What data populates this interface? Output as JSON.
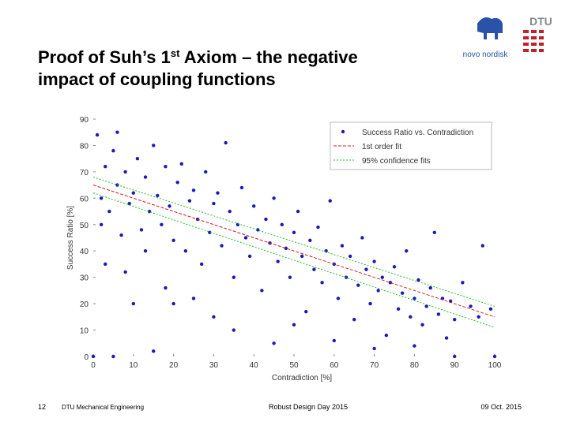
{
  "slide": {
    "title_parts": [
      "Proof of Suh’s 1",
      "st",
      " Axiom – the negative impact of coupling functions"
    ],
    "logos": {
      "novo": "novo nordisk",
      "dtu": "DTU"
    },
    "footer": {
      "page": "12",
      "department": "DTU Mechanical Engineering",
      "event": "Robust Design Day 2015",
      "date": "09 Oct. 2015"
    }
  },
  "chart_data": {
    "type": "scatter",
    "x_label": "Contradiction [%]",
    "y_label": "Success Ratio [%]",
    "xlim": [
      0,
      100
    ],
    "ylim": [
      0,
      90
    ],
    "xticks": [
      0,
      10,
      20,
      30,
      40,
      50,
      60,
      70,
      80,
      90,
      100
    ],
    "yticks": [
      0,
      10,
      20,
      30,
      40,
      50,
      60,
      70,
      80,
      90
    ],
    "grid": false,
    "legend": "upper right",
    "series": [
      {
        "name": "Success Ratio vs. Contradiction",
        "color": "#1a1ab8",
        "mode": "markers",
        "x": [
          1,
          2,
          3,
          4,
          5,
          6,
          7,
          8,
          9,
          10,
          11,
          12,
          13,
          14,
          15,
          16,
          17,
          18,
          19,
          20,
          21,
          22,
          23,
          24,
          25,
          26,
          27,
          28,
          29,
          30,
          31,
          32,
          33,
          34,
          35,
          36,
          37,
          38,
          39,
          40,
          41,
          42,
          43,
          44,
          45,
          46,
          47,
          48,
          49,
          50,
          51,
          52,
          53,
          54,
          55,
          56,
          57,
          58,
          59,
          60,
          61,
          62,
          63,
          64,
          65,
          66,
          67,
          68,
          69,
          70,
          71,
          72,
          73,
          74,
          75,
          76,
          77,
          78,
          79,
          80,
          81,
          82,
          83,
          84,
          85,
          86,
          87,
          88,
          89,
          90,
          92,
          94,
          96,
          97,
          99,
          100,
          0,
          5,
          15,
          20,
          25,
          30,
          35,
          10,
          45,
          50,
          60,
          70,
          80,
          90,
          3,
          8,
          13,
          18,
          2,
          6
        ],
        "values": [
          84,
          60,
          72,
          55,
          78,
          65,
          46,
          70,
          58,
          62,
          75,
          48,
          68,
          55,
          80,
          61,
          50,
          72,
          57,
          44,
          66,
          73,
          40,
          59,
          63,
          52,
          35,
          70,
          47,
          58,
          62,
          42,
          81,
          55,
          30,
          50,
          64,
          45,
          38,
          57,
          48,
          25,
          52,
          43,
          60,
          36,
          50,
          41,
          30,
          47,
          55,
          38,
          17,
          44,
          33,
          49,
          28,
          40,
          59,
          35,
          22,
          42,
          30,
          38,
          14,
          27,
          45,
          33,
          20,
          36,
          25,
          30,
          8,
          28,
          34,
          18,
          24,
          40,
          15,
          22,
          29,
          12,
          19,
          26,
          47,
          16,
          22,
          7,
          21,
          14,
          28,
          19,
          15,
          42,
          18,
          0,
          0,
          0,
          2,
          20,
          22,
          15,
          10,
          20,
          5,
          12,
          6,
          3,
          4,
          0,
          35,
          32,
          40,
          26,
          50,
          85
        ]
      },
      {
        "name": "1st order fit",
        "color": "#d02020",
        "mode": "line",
        "x": [
          0,
          100
        ],
        "values": [
          65,
          15
        ]
      },
      {
        "name": "95% confidence fits",
        "color": "#20c020",
        "mode": "dotted",
        "x": [
          0,
          100
        ],
        "values": [
          68,
          19
        ]
      },
      {
        "name": null,
        "color": "#20c020",
        "mode": "dotted",
        "x": [
          0,
          100
        ],
        "values": [
          62,
          11
        ]
      }
    ]
  }
}
